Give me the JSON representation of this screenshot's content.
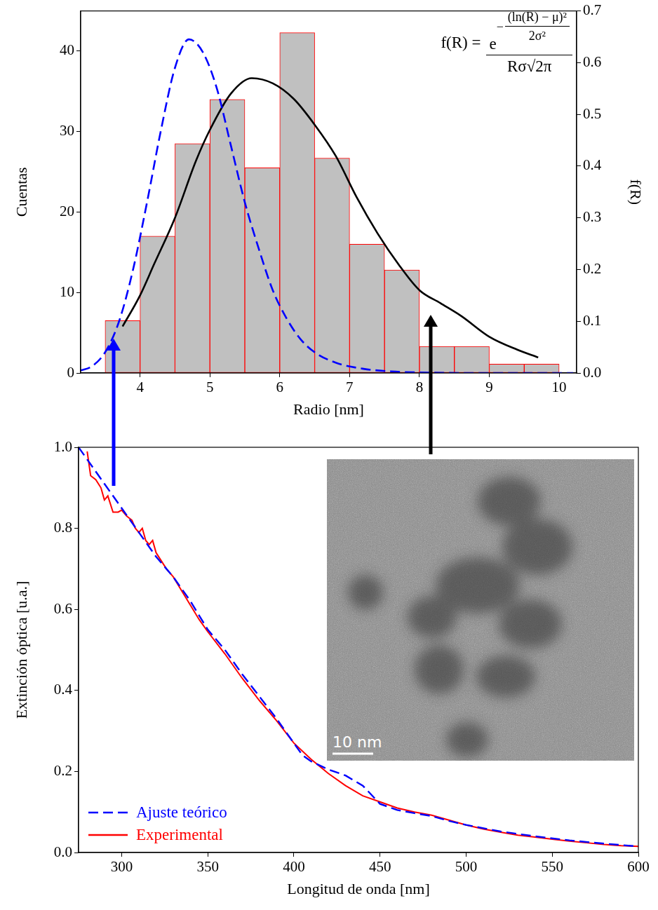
{
  "chart_data": [
    {
      "type": "histogram",
      "x_label": "Radio [nm]",
      "y_label": "Cuentas",
      "y2_label": "f(R)",
      "bins": [
        3.5,
        4,
        4.5,
        5,
        5.5,
        6,
        6.5,
        7,
        7.5,
        8,
        8.5,
        9,
        9.5,
        10
      ],
      "values": [
        6.5,
        17,
        28.5,
        34,
        25.5,
        42.3,
        26.7,
        16,
        12.8,
        3.3,
        3.3,
        1.1,
        1.1
      ],
      "color": "#c0c0c0",
      "curves": [
        {
          "x": [
            3.15,
            3.3,
            3.5,
            3.7,
            3.9,
            4.1,
            4.3,
            4.5,
            4.7,
            4.9,
            5.1,
            5.3,
            5.5,
            5.7,
            5.9,
            6.1,
            6.3,
            6.5,
            6.8,
            7.2,
            7.6,
            8,
            9,
            10.2
          ],
          "values": [
            0.005,
            0.012,
            0.04,
            0.1,
            0.2,
            0.33,
            0.47,
            0.59,
            0.645,
            0.62,
            0.55,
            0.44,
            0.33,
            0.24,
            0.16,
            0.105,
            0.065,
            0.04,
            0.02,
            0.008,
            0.003,
            0.001,
            0,
            0
          ],
          "color": "#0000ff",
          "line_style": "dashed",
          "axis": "y2"
        },
        {
          "x": [
            3.75,
            4,
            4.2,
            4.5,
            4.8,
            5,
            5.3,
            5.6,
            5.9,
            6.2,
            6.5,
            6.8,
            7.1,
            7.4,
            7.7,
            8,
            8.3,
            8.6,
            9,
            9.4,
            9.7
          ],
          "values": [
            0.09,
            0.15,
            0.21,
            0.3,
            0.41,
            0.47,
            0.54,
            0.57,
            0.56,
            0.53,
            0.48,
            0.42,
            0.34,
            0.27,
            0.21,
            0.16,
            0.135,
            0.11,
            0.07,
            0.045,
            0.03
          ],
          "color": "#000000",
          "line_style": "solid",
          "axis": "y2"
        }
      ],
      "xlim": [
        3.15,
        10.25
      ],
      "xticks": [
        4,
        5,
        6,
        7,
        8,
        9,
        10
      ],
      "ylim": [
        0,
        45
      ],
      "yticks": [
        0,
        10,
        20,
        30,
        40
      ],
      "y2lim": [
        0,
        0.7
      ],
      "y2ticks": [
        {
          "value": 0,
          "label": "0.0"
        },
        0.1,
        0.2,
        0.3,
        0.4,
        0.5,
        0.6,
        0.7
      ],
      "grid": false,
      "formula": {
        "lhs": "f(R) =",
        "base": "e",
        "exponent_sign": "−",
        "exponent_numerator": "(ln(R) − μ)²",
        "exponent_denominator": "2σ²",
        "denominator": "Rσ√2π"
      }
    },
    {
      "type": "line",
      "x_label": "Longitud de onda [nm]",
      "y_label": "Extinción óptica [u.a.]",
      "xlim": [
        275,
        600
      ],
      "xticks": [
        300,
        350,
        400,
        450,
        500,
        550,
        600
      ],
      "ylim": [
        0,
        1
      ],
      "yticks": [
        {
          "value": 0,
          "label": "0.0"
        },
        0.2,
        0.4,
        0.6,
        0.8,
        {
          "value": 1,
          "label": "1.0"
        }
      ],
      "grid": false,
      "legend": "lower left",
      "series": [
        {
          "name": "Ajuste teórico",
          "color": "#0000ff",
          "line_style": "dashed",
          "x": [
            275,
            280,
            290,
            300,
            310,
            320,
            330,
            340,
            350,
            360,
            370,
            380,
            390,
            400,
            405,
            410,
            420,
            430,
            440,
            450,
            460,
            470,
            480,
            490,
            500,
            520,
            540,
            560,
            580,
            600
          ],
          "values": [
            1.0,
            0.97,
            0.91,
            0.85,
            0.79,
            0.73,
            0.68,
            0.62,
            0.55,
            0.5,
            0.44,
            0.385,
            0.33,
            0.27,
            0.24,
            0.225,
            0.205,
            0.19,
            0.165,
            0.12,
            0.105,
            0.097,
            0.09,
            0.078,
            0.068,
            0.052,
            0.04,
            0.03,
            0.022,
            0.015
          ]
        },
        {
          "name": "Experimental",
          "color": "#ff0000",
          "line_style": "solid",
          "x": [
            280,
            282,
            285,
            288,
            290,
            292,
            295,
            298,
            300,
            303,
            306,
            308,
            310,
            312,
            314,
            316,
            318,
            320,
            323,
            326,
            330,
            335,
            340,
            345,
            350,
            360,
            370,
            380,
            390,
            400,
            410,
            420,
            430,
            440,
            450,
            460,
            470,
            480,
            490,
            500,
            510,
            520,
            530,
            540,
            550,
            560,
            570,
            580,
            590,
            600
          ],
          "values": [
            0.99,
            0.93,
            0.92,
            0.9,
            0.87,
            0.88,
            0.84,
            0.84,
            0.845,
            0.83,
            0.82,
            0.8,
            0.79,
            0.8,
            0.77,
            0.76,
            0.77,
            0.74,
            0.72,
            0.7,
            0.68,
            0.645,
            0.61,
            0.575,
            0.545,
            0.49,
            0.43,
            0.375,
            0.325,
            0.27,
            0.23,
            0.195,
            0.165,
            0.14,
            0.125,
            0.11,
            0.1,
            0.092,
            0.08,
            0.068,
            0.058,
            0.05,
            0.043,
            0.038,
            0.033,
            0.028,
            0.024,
            0.02,
            0.017,
            0.015
          ]
        }
      ],
      "annotations": [
        "10 nm"
      ]
    }
  ]
}
